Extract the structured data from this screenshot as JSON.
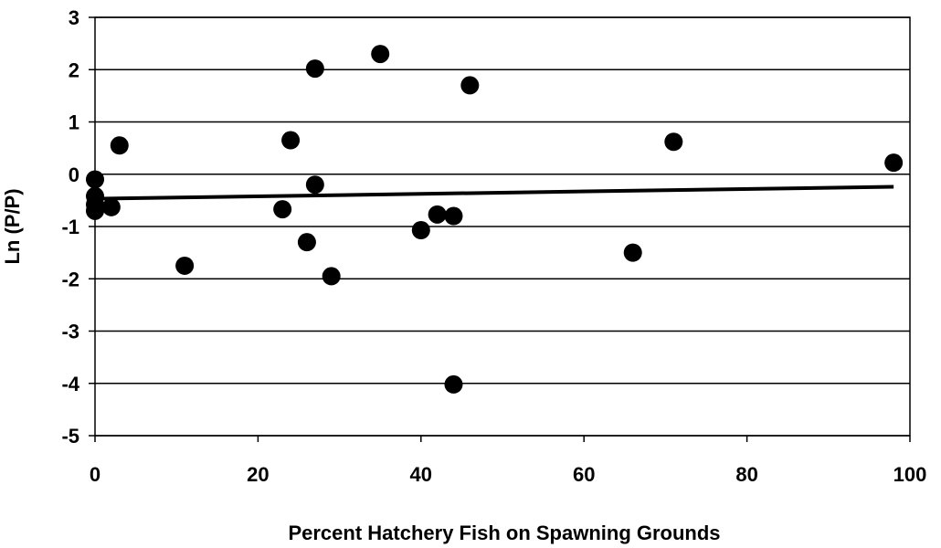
{
  "chart_data": {
    "type": "scatter",
    "title": "",
    "xlabel": "Percent Hatchery Fish on Spawning Grounds",
    "ylabel": "Ln (P/P)",
    "xlim": [
      0,
      100
    ],
    "ylim": [
      -5,
      3
    ],
    "xticks": [
      0,
      20,
      40,
      60,
      80,
      100
    ],
    "yticks": [
      -5,
      -4,
      -3,
      -2,
      -1,
      0,
      1,
      2,
      3
    ],
    "grid": "horizontal",
    "legend": "none",
    "points": [
      {
        "x": 0,
        "y": -0.1
      },
      {
        "x": 0,
        "y": -0.42
      },
      {
        "x": 0,
        "y": -0.58
      },
      {
        "x": 0,
        "y": -0.7
      },
      {
        "x": 2,
        "y": -0.63
      },
      {
        "x": 3,
        "y": 0.55
      },
      {
        "x": 11,
        "y": -1.75
      },
      {
        "x": 23,
        "y": -0.67
      },
      {
        "x": 24,
        "y": 0.65
      },
      {
        "x": 26,
        "y": -1.3
      },
      {
        "x": 27,
        "y": 2.02
      },
      {
        "x": 27,
        "y": -0.2
      },
      {
        "x": 29,
        "y": -1.95
      },
      {
        "x": 35,
        "y": 2.3
      },
      {
        "x": 40,
        "y": -1.07
      },
      {
        "x": 42,
        "y": -0.77
      },
      {
        "x": 44,
        "y": -0.8
      },
      {
        "x": 44,
        "y": -4.02
      },
      {
        "x": 46,
        "y": 1.7
      },
      {
        "x": 66,
        "y": -1.5
      },
      {
        "x": 71,
        "y": 0.62
      },
      {
        "x": 98,
        "y": 0.22
      }
    ],
    "trendline": {
      "x": [
        0,
        98
      ],
      "y": [
        -0.47,
        -0.24
      ]
    },
    "colors": {
      "marker": "#000000",
      "line": "#000000",
      "grid": "#000000"
    }
  }
}
